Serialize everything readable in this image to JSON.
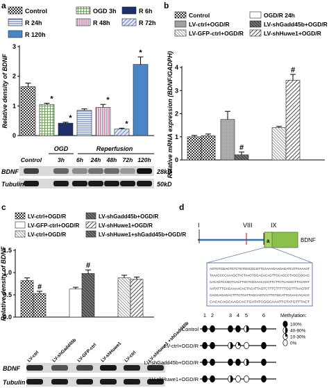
{
  "panel_labels": [
    "a",
    "b",
    "c",
    "d"
  ],
  "chart_data": [
    {
      "panel": "a",
      "type": "bar",
      "ylabel": "Relative density of BDNF",
      "ylim": [
        0,
        3
      ],
      "yticks": [
        0,
        1,
        2,
        3
      ],
      "legend": [
        "Control",
        "OGD 3h",
        "R 6h",
        "R 24h",
        "R 48h",
        "R 72h",
        "R 120h"
      ],
      "categories": [
        "Control",
        "OGD 3h",
        "R 6h",
        "R 24h",
        "R 48h",
        "R 72h",
        "R 120h"
      ],
      "values": [
        1.65,
        1.05,
        0.42,
        0.85,
        0.95,
        0.22,
        2.4
      ],
      "errors": [
        0.12,
        0.04,
        0.03,
        0.05,
        0.1,
        0.03,
        0.25
      ],
      "markers": [
        "",
        "*",
        "*",
        "",
        "*",
        "*",
        "*"
      ],
      "group_headers": [
        "OGD",
        "Reperfusion"
      ],
      "lane_labels": [
        "Control",
        "3h",
        "6h",
        "24h",
        "48h",
        "72h",
        "120h"
      ],
      "blot_rows": [
        {
          "name": "BDNF",
          "size": "28kD"
        },
        {
          "name": "Tubulin",
          "size": "50kD"
        }
      ]
    },
    {
      "panel": "b",
      "type": "bar",
      "ylabel": "Relative mRNA expression (BDNF/GADPH)",
      "ylim": [
        0,
        4
      ],
      "yticks": [
        0,
        1,
        2,
        3,
        4
      ],
      "legend": [
        "Control",
        "OGD/R 24h",
        "LV-ctrl+OGD/R",
        "LV-shGadd45b+OGD/R",
        "LV-GFP-ctrl+OGD/R",
        "LV-shHuwe1+OGD/R"
      ],
      "groups": [
        {
          "values": [
            1.0,
            1.05
          ],
          "errors": [
            0.06,
            0.07
          ],
          "markers": [
            "",
            ""
          ]
        },
        {
          "values": [
            1.75,
            0.22
          ],
          "errors": [
            0.35,
            0.12
          ],
          "markers": [
            "",
            "#"
          ]
        },
        {
          "values": [
            1.4,
            3.45
          ],
          "errors": [
            0.05,
            0.25
          ],
          "markers": [
            "",
            "#"
          ]
        }
      ]
    },
    {
      "panel": "c",
      "type": "bar",
      "ylabel": "Relative density of BDNF",
      "ylim": [
        0,
        1.5
      ],
      "yticks": [
        0,
        0.5,
        1.0,
        1.5
      ],
      "legend": [
        "LV-ctrl+OGD/R",
        "LV-shGadd45b+OGD/R",
        "LV-GFP-ctrl+OGD/R",
        "LV-shHuwe1+OGD/R",
        "LV-ctrl+OGD/R",
        "LV-shHuwe1+shGadd45b+OGD/R"
      ],
      "groups": [
        {
          "values": [
            0.82,
            0.53
          ],
          "errors": [
            0.06,
            0.05
          ],
          "markers": [
            "",
            "#"
          ]
        },
        {
          "values": [
            0.63,
            0.98
          ],
          "errors": [
            0.04,
            0.08
          ],
          "markers": [
            "",
            "#"
          ]
        },
        {
          "values": [
            0.88,
            0.85
          ],
          "errors": [
            0.06,
            0.05
          ],
          "markers": [
            "",
            ""
          ]
        }
      ],
      "lane_labels": [
        "LV-ctrl",
        "LV-shGadd45b",
        "LV-GFP-ctrl",
        "LV-shHuwe1",
        "LV-ctrl",
        "LV-shHuwe1 +shGadd45b"
      ],
      "blot_rows": [
        {
          "name": "BDNF",
          "size": ""
        },
        {
          "name": "Tubulin",
          "size": ""
        }
      ]
    }
  ],
  "panel_d": {
    "exon_labels": [
      "I",
      "VIII",
      "IX"
    ],
    "exon_letter": "a",
    "gene_label": "BDNF",
    "sequence_lines": [
      "AGTGTGGAGTGTCTGTGGCGCGTTGAAAAGAAGAGATCATTAAAAAT",
      "TAAACCCCAAAGCTACTAAGTGGAGACAGTTGCAGCCTAGCGGGAC",
      "CACAGTCCGCTCACTTGCTAGGAACACCTTCTTCTCAGGCTTACATAT",
      "AATATTTGAGAAAACACTACATTAGTCTTTCTTTTTGGTTTAAGTAT",
      "CAGCAGAGACTTTCTGATTAGCAGTCCTTGTGCATTCGAACACACC",
      "CACACAGCAAGCACTGATATCGGCAAATTCTATGTTTACT"
    ],
    "cpg_numbers": [
      "1",
      "2",
      "3",
      "4",
      "5",
      "6"
    ],
    "methylation_title": "Methylation:",
    "methylation_legend": [
      "100%",
      "40-90%",
      "10-30%",
      "0%"
    ],
    "rows": [
      {
        "label": "Control",
        "states": [
          3,
          3,
          3,
          3,
          2,
          3
        ]
      },
      {
        "label": "LV-ctrl+OGD/R",
        "states": [
          3,
          3,
          2,
          1,
          0,
          3
        ]
      },
      {
        "label": "LV-shGadd45b+OGD/R",
        "states": [
          3,
          3,
          3,
          3,
          2,
          3
        ]
      },
      {
        "label": "LV-shHuwe1+OGD/R",
        "states": [
          3,
          3,
          2,
          0,
          0,
          3
        ]
      }
    ],
    "colors": {
      "line": "#3a6fb5",
      "exon_box": "#8dc04a",
      "marker": "#d0302a",
      "box_border": "#5b7fb0"
    }
  }
}
